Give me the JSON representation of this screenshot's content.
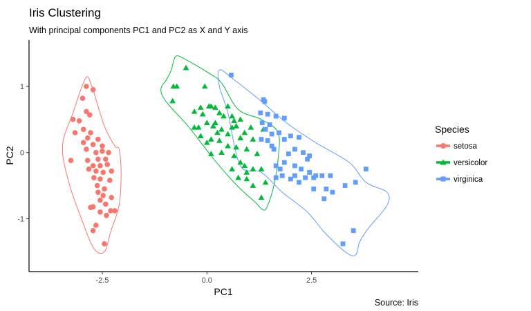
{
  "chart_data": {
    "type": "scatter",
    "title": "Iris Clustering",
    "subtitle": "With principal components PC1 and PC2 as X and Y axis",
    "xlabel": "PC1",
    "ylabel": "PC2",
    "caption": "Source: Iris",
    "xlim": [
      -4.25,
      5.05
    ],
    "ylim": [
      -1.8,
      1.7
    ],
    "x_ticks": [
      -2.5,
      0.0,
      2.5
    ],
    "x_tick_labels": [
      "-2.5",
      "0.0",
      "2.5"
    ],
    "y_ticks": [
      -1,
      0,
      1
    ],
    "y_tick_labels": [
      "-1",
      "0",
      "1"
    ],
    "grid": false,
    "legend": {
      "title": "Species",
      "position": "right"
    },
    "series": [
      {
        "name": "setosa",
        "color": "#F8766D",
        "shape": "circle",
        "hull": [
          [
            -2.9,
            1.12
          ],
          [
            -3.2,
            0.6
          ],
          [
            -3.45,
            0.1
          ],
          [
            -3.3,
            -0.45
          ],
          [
            -3.0,
            -1.0
          ],
          [
            -2.7,
            -1.45
          ],
          [
            -2.45,
            -1.5
          ],
          [
            -2.3,
            -1.2
          ],
          [
            -2.1,
            -0.8
          ],
          [
            -2.05,
            -0.3
          ],
          [
            -2.1,
            0.05
          ],
          [
            -2.2,
            0.1
          ],
          [
            -2.45,
            0.4
          ],
          [
            -2.75,
            1.0
          ]
        ],
        "points": [
          [
            -2.88,
            1.0
          ],
          [
            -2.72,
            0.95
          ],
          [
            -2.97,
            0.82
          ],
          [
            -2.88,
            0.62
          ],
          [
            -2.8,
            0.57
          ],
          [
            -3.2,
            0.5
          ],
          [
            -3.05,
            0.48
          ],
          [
            -2.95,
            0.35
          ],
          [
            -2.78,
            0.3
          ],
          [
            -3.15,
            0.3
          ],
          [
            -2.85,
            0.22
          ],
          [
            -2.6,
            0.2
          ],
          [
            -2.95,
            0.15
          ],
          [
            -2.72,
            0.12
          ],
          [
            -2.5,
            0.1
          ],
          [
            -2.88,
            0.05
          ],
          [
            -2.65,
            0.0
          ],
          [
            -2.5,
            0.02
          ],
          [
            -2.35,
            0.0
          ],
          [
            -3.25,
            -0.12
          ],
          [
            -2.85,
            -0.12
          ],
          [
            -2.6,
            -0.1
          ],
          [
            -2.42,
            -0.1
          ],
          [
            -2.72,
            -0.2
          ],
          [
            -2.55,
            -0.2
          ],
          [
            -2.38,
            -0.18
          ],
          [
            -2.82,
            -0.25
          ],
          [
            -2.65,
            -0.28
          ],
          [
            -2.48,
            -0.3
          ],
          [
            -2.28,
            -0.28
          ],
          [
            -2.7,
            -0.38
          ],
          [
            -2.55,
            -0.4
          ],
          [
            -2.32,
            -0.42
          ],
          [
            -2.62,
            -0.5
          ],
          [
            -2.45,
            -0.55
          ],
          [
            -2.6,
            -0.6
          ],
          [
            -2.48,
            -0.65
          ],
          [
            -2.28,
            -0.68
          ],
          [
            -2.55,
            -0.72
          ],
          [
            -2.42,
            -0.78
          ],
          [
            -2.72,
            -0.82
          ],
          [
            -2.78,
            -0.83
          ],
          [
            -2.3,
            -0.88
          ],
          [
            -2.55,
            -0.9
          ],
          [
            -2.4,
            -0.95
          ],
          [
            -2.65,
            -1.1
          ],
          [
            -2.72,
            -1.18
          ],
          [
            -2.45,
            -1.38
          ],
          [
            -2.2,
            -0.88
          ]
        ]
      },
      {
        "name": "versicolor",
        "color": "#00BA38",
        "shape": "triangle",
        "hull": [
          [
            -0.75,
            1.45
          ],
          [
            -0.55,
            1.42
          ],
          [
            0.05,
            1.2
          ],
          [
            0.35,
            1.05
          ],
          [
            0.75,
            0.65
          ],
          [
            1.3,
            0.5
          ],
          [
            1.7,
            0.3
          ],
          [
            1.7,
            -0.1
          ],
          [
            1.6,
            -0.5
          ],
          [
            1.45,
            -0.8
          ],
          [
            1.35,
            -0.87
          ],
          [
            1.15,
            -0.75
          ],
          [
            0.8,
            -0.55
          ],
          [
            0.5,
            -0.35
          ],
          [
            0.1,
            -0.05
          ],
          [
            -0.45,
            0.4
          ],
          [
            -0.95,
            0.75
          ],
          [
            -1.1,
            0.95
          ],
          [
            -0.95,
            1.12
          ],
          [
            -0.85,
            1.25
          ]
        ],
        "points": [
          [
            -0.5,
            1.28
          ],
          [
            -0.8,
            1.0
          ],
          [
            -0.72,
            1.0
          ],
          [
            -0.05,
            1.0
          ],
          [
            -0.82,
            0.78
          ],
          [
            0.05,
            0.7
          ],
          [
            -0.15,
            0.68
          ],
          [
            0.1,
            0.7
          ],
          [
            0.2,
            0.68
          ],
          [
            0.5,
            0.7
          ],
          [
            0.3,
            0.6
          ],
          [
            -0.3,
            0.62
          ],
          [
            -0.1,
            0.58
          ],
          [
            0.4,
            0.55
          ],
          [
            0.6,
            0.55
          ],
          [
            0.8,
            0.5
          ],
          [
            0.65,
            0.48
          ],
          [
            0.0,
            0.45
          ],
          [
            0.2,
            0.45
          ],
          [
            0.7,
            0.4
          ],
          [
            1.05,
            0.38
          ],
          [
            0.6,
            0.38
          ],
          [
            0.25,
            0.3
          ],
          [
            0.35,
            0.35
          ],
          [
            -0.2,
            0.38
          ],
          [
            0.15,
            0.4
          ],
          [
            0.9,
            0.3
          ],
          [
            0.5,
            0.28
          ],
          [
            0.8,
            0.22
          ],
          [
            1.1,
            0.2
          ],
          [
            1.35,
            0.35
          ],
          [
            0.3,
            0.18
          ],
          [
            0.1,
            0.2
          ],
          [
            -0.3,
            0.38
          ],
          [
            0.0,
            0.15
          ],
          [
            -0.15,
            0.25
          ],
          [
            0.5,
            0.1
          ],
          [
            0.7,
            0.08
          ],
          [
            0.95,
            0.05
          ],
          [
            0.35,
            0.0
          ],
          [
            0.1,
            -0.02
          ],
          [
            0.65,
            -0.05
          ],
          [
            1.2,
            -0.02
          ],
          [
            0.8,
            -0.15
          ],
          [
            0.9,
            -0.2
          ],
          [
            0.6,
            -0.25
          ],
          [
            1.1,
            -0.25
          ],
          [
            1.3,
            -0.25
          ],
          [
            0.95,
            -0.3
          ],
          [
            0.75,
            -0.38
          ],
          [
            0.95,
            -0.4
          ],
          [
            1.4,
            -0.45
          ],
          [
            1.1,
            -0.5
          ],
          [
            1.3,
            -0.68
          ]
        ]
      },
      {
        "name": "virginica",
        "color": "#619CFF",
        "shape": "square",
        "hull": [
          [
            0.3,
            1.25
          ],
          [
            0.65,
            1.1
          ],
          [
            1.25,
            0.8
          ],
          [
            1.9,
            0.45
          ],
          [
            2.6,
            0.15
          ],
          [
            3.4,
            -0.15
          ],
          [
            3.8,
            -0.45
          ],
          [
            4.3,
            -0.6
          ],
          [
            4.3,
            -0.8
          ],
          [
            3.85,
            -1.15
          ],
          [
            3.65,
            -1.35
          ],
          [
            3.55,
            -1.55
          ],
          [
            3.3,
            -1.5
          ],
          [
            2.8,
            -1.2
          ],
          [
            2.4,
            -0.9
          ],
          [
            1.8,
            -0.6
          ],
          [
            1.3,
            -0.3
          ],
          [
            0.8,
            -0.2
          ],
          [
            0.5,
            0.6
          ],
          [
            0.3,
            1.0
          ]
        ],
        "points": [
          [
            0.58,
            1.17
          ],
          [
            1.35,
            0.8
          ],
          [
            1.38,
            0.77
          ],
          [
            1.28,
            0.6
          ],
          [
            1.45,
            0.58
          ],
          [
            1.65,
            0.55
          ],
          [
            1.85,
            0.52
          ],
          [
            1.32,
            0.45
          ],
          [
            1.5,
            0.42
          ],
          [
            1.4,
            0.35
          ],
          [
            1.72,
            0.3
          ],
          [
            1.55,
            0.28
          ],
          [
            2.0,
            0.25
          ],
          [
            2.2,
            0.23
          ],
          [
            1.3,
            0.2
          ],
          [
            1.45,
            0.18
          ],
          [
            1.55,
            0.1
          ],
          [
            1.6,
            0.05
          ],
          [
            1.85,
            0.2
          ],
          [
            2.1,
            0.05
          ],
          [
            2.3,
            0.0
          ],
          [
            1.95,
            -0.02
          ],
          [
            2.45,
            -0.05
          ],
          [
            2.4,
            -0.1
          ],
          [
            1.85,
            -0.15
          ],
          [
            2.1,
            -0.2
          ],
          [
            1.65,
            -0.2
          ],
          [
            1.75,
            -0.25
          ],
          [
            2.25,
            -0.25
          ],
          [
            2.45,
            -0.3
          ],
          [
            2.1,
            -0.35
          ],
          [
            1.8,
            -0.35
          ],
          [
            2.6,
            -0.35
          ],
          [
            2.0,
            -0.4
          ],
          [
            2.35,
            -0.38
          ],
          [
            2.55,
            -0.38
          ],
          [
            2.75,
            -0.35
          ],
          [
            2.95,
            -0.35
          ],
          [
            1.65,
            -0.38
          ],
          [
            2.2,
            -0.45
          ],
          [
            2.55,
            -0.55
          ],
          [
            2.85,
            -0.55
          ],
          [
            3.8,
            -0.25
          ],
          [
            3.55,
            -0.45
          ],
          [
            3.3,
            -0.5
          ],
          [
            3.0,
            -0.6
          ],
          [
            2.8,
            -0.7
          ],
          [
            3.25,
            -1.38
          ],
          [
            3.5,
            -1.18
          ]
        ]
      }
    ]
  }
}
